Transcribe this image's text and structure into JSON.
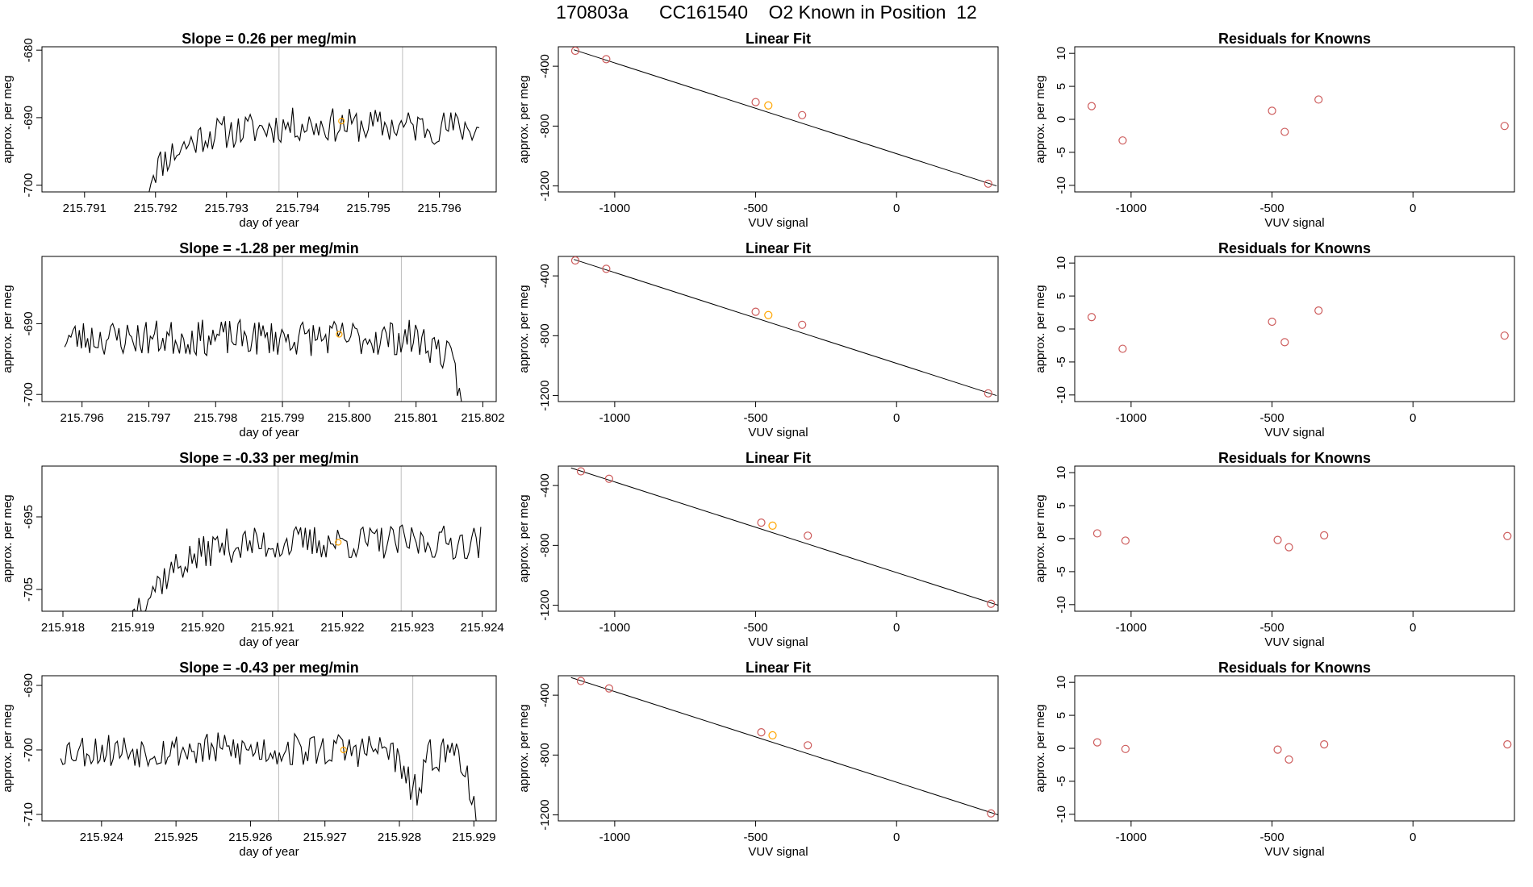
{
  "page_title": "170803a      CC161540    O2 Known in Position  12",
  "colors": {
    "trace": "#000000",
    "highlight": "#ffa500",
    "points": "#cd5c5c",
    "vline": "#bebebe",
    "axis": "#000000"
  },
  "chart_data": [
    {
      "row": 0,
      "panel": "timeseries",
      "type": "line",
      "title": "Slope =  0.26  per meg/min",
      "xlabel": "day of year",
      "ylabel": "approx. per meg",
      "xlim": [
        215.7904,
        215.7968
      ],
      "ylim": [
        -701,
        -679.5
      ],
      "xticks": [
        "215.791",
        "215.792",
        "215.793",
        "215.794",
        "215.795",
        "215.796"
      ],
      "xtick_values": [
        215.791,
        215.792,
        215.793,
        215.794,
        215.795,
        215.796
      ],
      "yticks": [
        "-700",
        "-690",
        "-680"
      ],
      "ytick_values": [
        -700,
        -690,
        -680
      ],
      "vlines": [
        215.79374,
        215.79548
      ],
      "trace_x_range": [
        215.79024,
        215.79656
      ],
      "trace_keyframes": [
        [
          215.79024,
          -701
        ],
        [
          215.79188,
          -701
        ],
        [
          215.79195,
          -698
        ],
        [
          215.7922,
          -695.5
        ],
        [
          215.7927,
          -692.5
        ],
        [
          215.794,
          -691
        ],
        [
          215.7965,
          -691.5
        ]
      ],
      "trace_amplitude": 1.6,
      "trace_seed": 11,
      "highlight_point": [
        215.79462,
        -690.5
      ]
    },
    {
      "row": 0,
      "panel": "linear_fit",
      "type": "scatter",
      "title": "Linear Fit",
      "xlabel": "VUV signal",
      "ylabel": "approx. per meg",
      "xlim": [
        -1200,
        360
      ],
      "ylim": [
        -1240,
        -270
      ],
      "xticks": [
        "-1000",
        "-500",
        "0"
      ],
      "xtick_values": [
        -1000,
        -500,
        0
      ],
      "yticks": [
        "-400",
        "-800",
        "-1200"
      ],
      "ytick_values": [
        -400,
        -800,
        -1200
      ],
      "points": [
        [
          -1140,
          -297
        ],
        [
          -1030,
          -353
        ],
        [
          -500,
          -640
        ],
        [
          -455,
          -662
        ],
        [
          -335,
          -727
        ],
        [
          325,
          -1185
        ]
      ],
      "highlight_index": 3,
      "fit_line": [
        [
          -1145,
          -290
        ],
        [
          355,
          -1200
        ]
      ]
    },
    {
      "row": 0,
      "panel": "residuals",
      "type": "scatter",
      "title": "Residuals for Knowns",
      "xlabel": "VUV signal",
      "ylabel": "approx. per meg",
      "xlim": [
        -1200,
        360
      ],
      "ylim": [
        -11,
        11
      ],
      "xticks": [
        "-1000",
        "-500",
        "0"
      ],
      "xtick_values": [
        -1000,
        -500,
        0
      ],
      "yticks": [
        "10",
        "5",
        "0",
        "-5",
        "-10"
      ],
      "ytick_values": [
        10,
        5,
        0,
        -5,
        -10
      ],
      "points": [
        [
          -1140,
          2
        ],
        [
          -1030,
          -3.2
        ],
        [
          -500,
          1.3
        ],
        [
          -455,
          -1.9
        ],
        [
          -335,
          3
        ],
        [
          325,
          -1
        ]
      ]
    },
    {
      "row": 1,
      "panel": "timeseries",
      "type": "line",
      "title": "Slope =  -1.28  per meg/min",
      "xlabel": "day of year",
      "ylabel": "approx. per meg",
      "xlim": [
        215.7954,
        215.8022
      ],
      "ylim": [
        -701,
        -680.5
      ],
      "xticks": [
        "215.796",
        "215.797",
        "215.798",
        "215.799",
        "215.800",
        "215.801",
        "215.802"
      ],
      "xtick_values": [
        215.796,
        215.797,
        215.798,
        215.799,
        215.8,
        215.801,
        215.802
      ],
      "yticks": [
        "-700",
        "-690"
      ],
      "ytick_values": [
        -700,
        -690
      ],
      "vlines": [
        215.799,
        215.80078
      ],
      "trace_x_range": [
        215.79574,
        215.80168
      ],
      "trace_keyframes": [
        [
          215.79574,
          -692
        ],
        [
          215.801,
          -692
        ],
        [
          215.8014,
          -694
        ],
        [
          215.80155,
          -696
        ],
        [
          215.80168,
          -701
        ]
      ],
      "trace_amplitude": 1.6,
      "trace_seed": 23,
      "highlight_point": [
        215.79985,
        -691.5
      ]
    },
    {
      "row": 1,
      "panel": "linear_fit",
      "type": "scatter",
      "title": "Linear Fit",
      "xlabel": "VUV signal",
      "ylabel": "approx. per meg",
      "xlim": [
        -1200,
        360
      ],
      "ylim": [
        -1240,
        -270
      ],
      "xticks": [
        "-1000",
        "-500",
        "0"
      ],
      "xtick_values": [
        -1000,
        -500,
        0
      ],
      "yticks": [
        "-400",
        "-800",
        "-1200"
      ],
      "ytick_values": [
        -400,
        -800,
        -1200
      ],
      "points": [
        [
          -1140,
          -297
        ],
        [
          -1030,
          -353
        ],
        [
          -500,
          -640
        ],
        [
          -455,
          -662
        ],
        [
          -335,
          -727
        ],
        [
          325,
          -1185
        ]
      ],
      "highlight_index": 3,
      "fit_line": [
        [
          -1145,
          -290
        ],
        [
          355,
          -1200
        ]
      ]
    },
    {
      "row": 1,
      "panel": "residuals",
      "type": "scatter",
      "title": "Residuals for Knowns",
      "xlabel": "VUV signal",
      "ylabel": "approx. per meg",
      "xlim": [
        -1200,
        360
      ],
      "ylim": [
        -11,
        11
      ],
      "xticks": [
        "-1000",
        "-500",
        "0"
      ],
      "xtick_values": [
        -1000,
        -500,
        0
      ],
      "yticks": [
        "10",
        "5",
        "0",
        "-5",
        "-10"
      ],
      "ytick_values": [
        10,
        5,
        0,
        -5,
        -10
      ],
      "points": [
        [
          -1140,
          1.8
        ],
        [
          -1030,
          -3
        ],
        [
          -500,
          1.1
        ],
        [
          -455,
          -2
        ],
        [
          -335,
          2.8
        ],
        [
          325,
          -1
        ]
      ]
    },
    {
      "row": 2,
      "panel": "timeseries",
      "type": "line",
      "title": "Slope =  -0.33  per meg/min",
      "xlabel": "day of year",
      "ylabel": "approx. per meg",
      "xlim": [
        215.9177,
        215.9242
      ],
      "ylim": [
        -708,
        -688
      ],
      "xticks": [
        "215.918",
        "215.919",
        "215.920",
        "215.921",
        "215.922",
        "215.923",
        "215.924"
      ],
      "xtick_values": [
        215.918,
        215.919,
        215.92,
        215.921,
        215.922,
        215.923,
        215.924
      ],
      "yticks": [
        "-705",
        "-695"
      ],
      "ytick_values": [
        -705,
        -695
      ],
      "vlines": [
        215.92108,
        215.92284
      ],
      "trace_x_range": [
        215.9177,
        215.92398
      ],
      "trace_keyframes": [
        [
          215.9177,
          -708
        ],
        [
          215.919,
          -708
        ],
        [
          215.91915,
          -706
        ],
        [
          215.9196,
          -702
        ],
        [
          215.9202,
          -699
        ],
        [
          215.9215,
          -698.5
        ],
        [
          215.924,
          -698.5
        ]
      ],
      "trace_amplitude": 1.5,
      "trace_seed": 37,
      "highlight_point": [
        215.92194,
        -698.5
      ]
    },
    {
      "row": 2,
      "panel": "linear_fit",
      "type": "scatter",
      "title": "Linear Fit",
      "xlabel": "VUV signal",
      "ylabel": "approx. per meg",
      "xlim": [
        -1200,
        360
      ],
      "ylim": [
        -1240,
        -270
      ],
      "xticks": [
        "-1000",
        "-500",
        "0"
      ],
      "xtick_values": [
        -1000,
        -500,
        0
      ],
      "yticks": [
        "-400",
        "-800",
        "-1200"
      ],
      "ytick_values": [
        -400,
        -800,
        -1200
      ],
      "points": [
        [
          -1120,
          -305
        ],
        [
          -1020,
          -355
        ],
        [
          -480,
          -648
        ],
        [
          -440,
          -668
        ],
        [
          -315,
          -735
        ],
        [
          335,
          -1190
        ]
      ],
      "highlight_index": 3,
      "fit_line": [
        [
          -1155,
          -282
        ],
        [
          360,
          -1200
        ]
      ]
    },
    {
      "row": 2,
      "panel": "residuals",
      "type": "scatter",
      "title": "Residuals for Knowns",
      "xlabel": "VUV signal",
      "ylabel": "approx. per meg",
      "xlim": [
        -1200,
        360
      ],
      "ylim": [
        -11,
        11
      ],
      "xticks": [
        "-1000",
        "-500",
        "0"
      ],
      "xtick_values": [
        -1000,
        -500,
        0
      ],
      "yticks": [
        "10",
        "5",
        "0",
        "-5",
        "-10"
      ],
      "ytick_values": [
        10,
        5,
        0,
        -5,
        -10
      ],
      "points": [
        [
          -1120,
          0.8
        ],
        [
          -1020,
          -0.3
        ],
        [
          -480,
          -0.2
        ],
        [
          -440,
          -1.3
        ],
        [
          -315,
          0.5
        ],
        [
          335,
          0.4
        ]
      ]
    },
    {
      "row": 3,
      "panel": "timeseries",
      "type": "line",
      "title": "Slope =  -0.43  per meg/min",
      "xlabel": "day of year",
      "ylabel": "approx. per meg",
      "xlim": [
        215.9232,
        215.9293
      ],
      "ylim": [
        -711,
        -688.5
      ],
      "xticks": [
        "215.924",
        "215.925",
        "215.926",
        "215.927",
        "215.928",
        "215.929"
      ],
      "xtick_values": [
        215.924,
        215.925,
        215.926,
        215.927,
        215.928,
        215.929
      ],
      "yticks": [
        "-710",
        "-700",
        "-690"
      ],
      "ytick_values": [
        -710,
        -700,
        -690
      ],
      "vlines": [
        215.92638,
        215.92818
      ],
      "trace_x_range": [
        215.92345,
        215.92903
      ],
      "trace_keyframes": [
        [
          215.92345,
          -700
        ],
        [
          215.9279,
          -700
        ],
        [
          215.92805,
          -704
        ],
        [
          215.92825,
          -707
        ],
        [
          215.9284,
          -701
        ],
        [
          215.9288,
          -700
        ],
        [
          215.92892,
          -704
        ],
        [
          215.92903,
          -711
        ]
      ],
      "trace_amplitude": 1.7,
      "trace_seed": 53,
      "highlight_point": [
        215.92725,
        -700
      ]
    },
    {
      "row": 3,
      "panel": "linear_fit",
      "type": "scatter",
      "title": "Linear Fit",
      "xlabel": "VUV signal",
      "ylabel": "approx. per meg",
      "xlim": [
        -1200,
        360
      ],
      "ylim": [
        -1240,
        -270
      ],
      "xticks": [
        "-1000",
        "-500",
        "0"
      ],
      "xtick_values": [
        -1000,
        -500,
        0
      ],
      "yticks": [
        "-400",
        "-800",
        "-1200"
      ],
      "ytick_values": [
        -400,
        -800,
        -1200
      ],
      "points": [
        [
          -1120,
          -305
        ],
        [
          -1020,
          -355
        ],
        [
          -480,
          -648
        ],
        [
          -440,
          -668
        ],
        [
          -315,
          -735
        ],
        [
          335,
          -1190
        ]
      ],
      "highlight_index": 3,
      "fit_line": [
        [
          -1155,
          -282
        ],
        [
          360,
          -1200
        ]
      ]
    },
    {
      "row": 3,
      "panel": "residuals",
      "type": "scatter",
      "title": "Residuals for Knowns",
      "xlabel": "VUV signal",
      "ylabel": "approx. per meg",
      "xlim": [
        -1200,
        360
      ],
      "ylim": [
        -11,
        11
      ],
      "xticks": [
        "-1000",
        "-500",
        "0"
      ],
      "xtick_values": [
        -1000,
        -500,
        0
      ],
      "yticks": [
        "10",
        "5",
        "0",
        "-5",
        "-10"
      ],
      "ytick_values": [
        10,
        5,
        0,
        -5,
        -10
      ],
      "points": [
        [
          -1120,
          0.9
        ],
        [
          -1020,
          -0.1
        ],
        [
          -480,
          -0.2
        ],
        [
          -440,
          -1.7
        ],
        [
          -315,
          0.6
        ],
        [
          335,
          0.6
        ]
      ]
    }
  ]
}
